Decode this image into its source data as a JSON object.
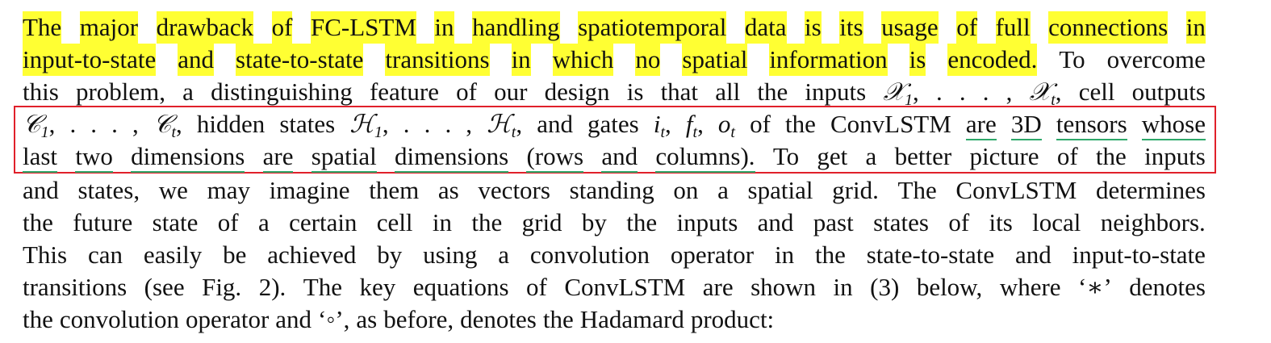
{
  "colors": {
    "highlight": "#ffff33",
    "box_border": "#e0202a",
    "underline": "#2ea86a"
  },
  "lines": [
    "The major drawback of FC-LSTM in handling spatiotemporal data is its usage of full connections in",
    "input-to-state and state-to-state transitions in which no spatial information is encoded. To overcome",
    "this problem, a distinguishing feature of our design is that all the inputs 𝒳1, . . . , 𝒳t, cell outputs",
    "𝒞1, . . . , 𝒞t, hidden states ℋ1, . . . , ℋt, and gates it, ft, ot of the ConvLSTM are 3D tensors whose",
    "last two dimensions are spatial dimensions (rows and columns). To get a better picture of the inputs",
    "and states, we may imagine them as vectors standing on a spatial grid. The ConvLSTM determines",
    "the future state of a certain cell in the grid by the inputs and past states of its local neighbors.",
    "This can easily be achieved by using a convolution operator in the state-to-state and input-to-state",
    "transitions (see Fig. 2). The key equations of ConvLSTM are shown in (3) below, where ‘∗’ denotes",
    "the convolution operator and ‘◦’, as before, denotes the Hadamard product:"
  ]
}
